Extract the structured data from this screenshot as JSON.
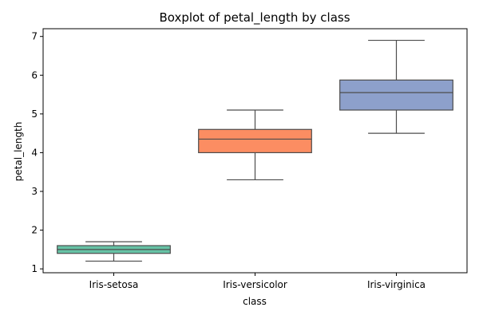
{
  "chart_data": {
    "type": "box",
    "title": "Boxplot of petal_length by class",
    "xlabel": "class",
    "ylabel": "petal_length",
    "ylim": [
      0.9,
      7.2
    ],
    "yticks": [
      1,
      2,
      3,
      4,
      5,
      6,
      7
    ],
    "categories": [
      "Iris-setosa",
      "Iris-versicolor",
      "Iris-virginica"
    ],
    "boxes": [
      {
        "category": "Iris-setosa",
        "whisker_low": 1.2,
        "q1": 1.4,
        "median": 1.5,
        "q3": 1.6,
        "whisker_high": 1.7,
        "color": "#66c2a5"
      },
      {
        "category": "Iris-versicolor",
        "whisker_low": 3.3,
        "q1": 4.0,
        "median": 4.35,
        "q3": 4.6,
        "whisker_high": 5.1,
        "color": "#fc8d62"
      },
      {
        "category": "Iris-virginica",
        "whisker_low": 4.5,
        "q1": 5.1,
        "median": 5.55,
        "q3": 5.875,
        "whisker_high": 6.9,
        "color": "#8da0cb"
      }
    ],
    "grid": false,
    "legend": "none"
  }
}
